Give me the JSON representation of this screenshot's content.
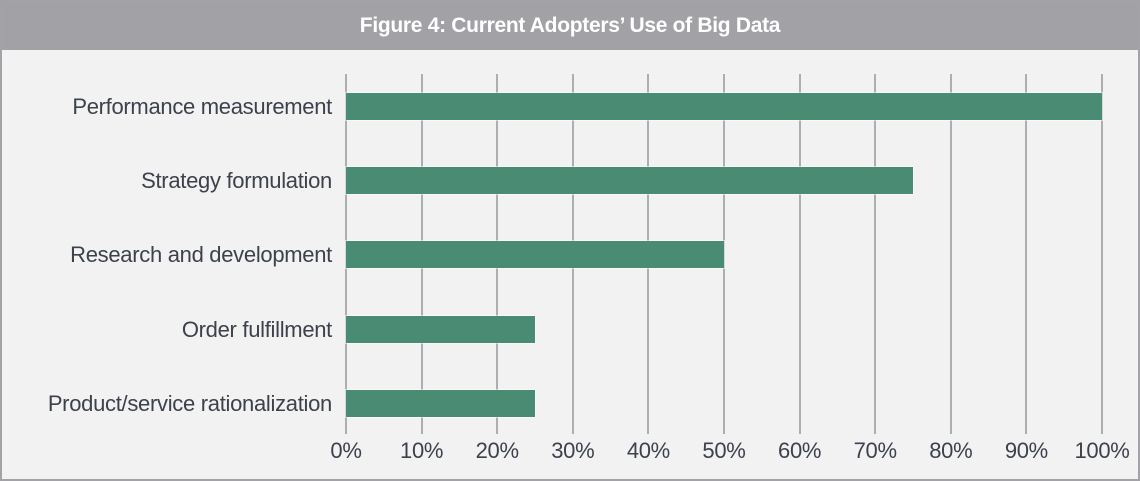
{
  "header": {
    "title": "Figure 4: Current Adopters’ Use of Big Data"
  },
  "chart_data": {
    "type": "bar",
    "orientation": "horizontal",
    "title": "Figure 4: Current Adopters’ Use of Big Data",
    "categories": [
      "Performance measurement",
      "Strategy formulation",
      "Research and development",
      "Order fulfillment",
      "Product/service rationalization"
    ],
    "values": [
      100,
      75,
      50,
      25,
      25
    ],
    "value_unit": "%",
    "xlabel": "",
    "ylabel": "",
    "xlim": [
      0,
      100
    ],
    "x_tick_step": 10,
    "x_tick_labels": [
      "0%",
      "10%",
      "20%",
      "30%",
      "40%",
      "50%",
      "60%",
      "70%",
      "80%",
      "90%",
      "100%"
    ],
    "grid": "vertical",
    "legend": "none",
    "colors": {
      "bar": "#4a8b74",
      "header_background": "#a2a2a6",
      "header_text": "#ffffff",
      "figure_background": "#f2f2f3",
      "gridline": "#acaeb2",
      "axis_text": "#3c414b",
      "border": "#a3a3a7"
    }
  }
}
